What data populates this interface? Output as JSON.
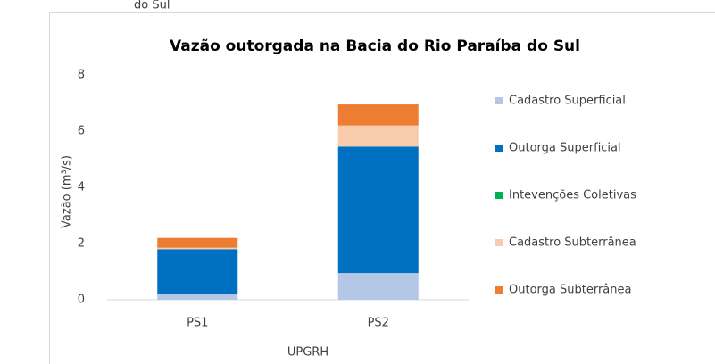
{
  "caption": "do Sul",
  "chart_data": {
    "type": "stacked_bar",
    "title": "Vazão outorgada na Bacia do Rio Paraíba do Sul",
    "y_label": "Vazão (m³/s)",
    "x_label": "UPGRH",
    "categories": [
      "PS1",
      "PS2"
    ],
    "series": [
      {
        "name": "Cadastro Superficial",
        "color": "#b4c7e7",
        "values": [
          0.2,
          0.95
        ]
      },
      {
        "name": "Outorga Superficial",
        "color": "#0070c0",
        "values": [
          1.6,
          4.5
        ]
      },
      {
        "name": "Intevenções Coletivas",
        "color": "#00b050",
        "values": [
          0,
          0
        ]
      },
      {
        "name": "Cadastro Subterrânea",
        "color": "#f8cbad",
        "values": [
          0.05,
          0.75
        ]
      },
      {
        "name": "Outorga Subterrânea",
        "color": "#ed7d31",
        "values": [
          0.35,
          0.75
        ]
      }
    ],
    "ylim": [
      0,
      8
    ],
    "yticks": [
      0,
      2,
      4,
      6,
      8
    ],
    "grid": false,
    "legend": "right"
  }
}
